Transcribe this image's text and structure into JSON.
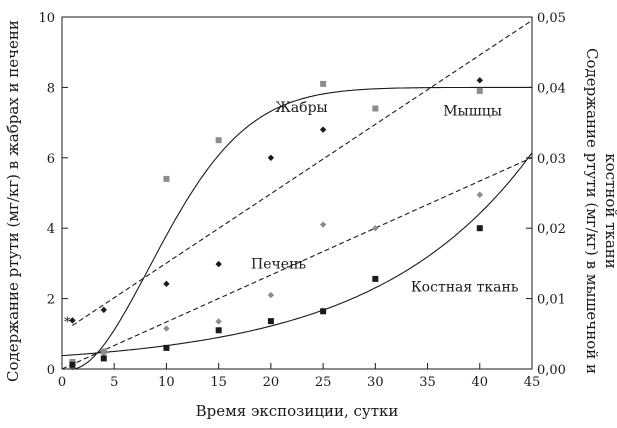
{
  "chart_data": {
    "type": "scatter",
    "xlabel": "Время экспозиции, сутки",
    "ylabel_left": "Содержание ртути (мг/кг) в жабрах и печени",
    "ylabel_right": "Содержание ртути (мг/кг) в мышечной и костной ткани",
    "xlim": [
      0,
      45
    ],
    "ylim_left": [
      0,
      10
    ],
    "ylim_right": [
      0,
      0.05
    ],
    "x_ticks": [
      "0",
      "5",
      "10",
      "15",
      "20",
      "25",
      "30",
      "35",
      "40",
      "45"
    ],
    "y_left_ticks": [
      "0",
      "2",
      "4",
      "6",
      "8",
      "10"
    ],
    "y_right_ticks": [
      "0,00",
      "0,01",
      "0,02",
      "0,03",
      "0,04",
      "0,05"
    ],
    "grid": false,
    "annotations": [
      "Жабры",
      "Мышцы",
      "Печень",
      "Костная ткань"
    ],
    "series": [
      {
        "name": "Жабры",
        "axis": "left",
        "marker": "square",
        "color": "#8c8c8c",
        "points": [
          [
            1,
            0.2
          ],
          [
            4,
            0.5
          ],
          [
            10,
            5.4
          ],
          [
            15,
            6.5
          ],
          [
            25,
            8.1
          ],
          [
            30,
            7.4
          ],
          [
            40,
            7.9
          ]
        ],
        "fit": "saturating",
        "fit_style": "solid"
      },
      {
        "name": "Мышцы",
        "axis": "right",
        "marker": "diamond",
        "color": "#1a1a1a",
        "points": [
          [
            1,
            0.0069
          ],
          [
            4,
            0.0084
          ],
          [
            10,
            0.0121
          ],
          [
            15,
            0.0149
          ],
          [
            20,
            0.03
          ],
          [
            25,
            0.034
          ],
          [
            40,
            0.041
          ]
        ],
        "fit": "linear",
        "fit_style": "dashed"
      },
      {
        "name": "Печень",
        "axis": "left",
        "marker": "diamond",
        "color": "#8c8c8c",
        "points": [
          [
            1,
            0.05
          ],
          [
            4,
            0.45
          ],
          [
            10,
            1.15
          ],
          [
            15,
            1.35
          ],
          [
            20,
            2.1
          ],
          [
            25,
            4.1
          ],
          [
            30,
            4.0
          ],
          [
            40,
            4.95
          ]
        ],
        "fit": "linear",
        "fit_style": "dashed"
      },
      {
        "name": "Костная ткань",
        "axis": "right",
        "marker": "square",
        "color": "#1a1a1a",
        "points": [
          [
            1,
            0.0006
          ],
          [
            4,
            0.0015
          ],
          [
            10,
            0.003
          ],
          [
            15,
            0.0055
          ],
          [
            20,
            0.0068
          ],
          [
            25,
            0.0082
          ],
          [
            30,
            0.0128
          ],
          [
            40,
            0.02
          ]
        ],
        "fit": "exponential",
        "fit_style": "solid"
      }
    ]
  }
}
